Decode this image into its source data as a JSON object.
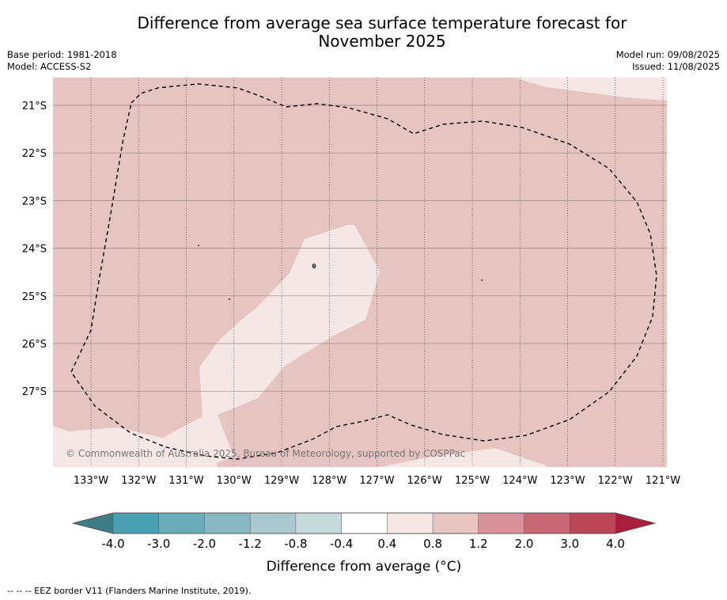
{
  "title_line1": "Difference from average sea surface temperature forecast for",
  "title_line2": "November 2025",
  "base_period": "Base period: 1981-2018",
  "model": "Model: ACCESS-S2",
  "model_run": "Model run: 09/08/2025",
  "issued": "Issued: 11/08/2025",
  "copyright": "© Commonwealth of Australia 2025, Bureau of Meteorology, supported by COSPPac",
  "footnote": "-- -- -- EEZ border V11 (Flanders Marine Institute, 2019).",
  "map": {
    "lat_labels": [
      "21°S",
      "22°S",
      "23°S",
      "24°S",
      "25°S",
      "26°S",
      "27°S"
    ],
    "lon_labels": [
      "133°W",
      "132°W",
      "131°W",
      "130°W",
      "129°W",
      "128°W",
      "127°W",
      "126°W",
      "125°W",
      "124°W",
      "123°W",
      "122°W",
      "121°W"
    ],
    "colors": {
      "band_0_8_1_2": "#e6c4c1",
      "band_0_4_0_8": "#f4e7e6",
      "eez_border": "#000000"
    }
  },
  "colorbar": {
    "title": "Difference from average (°C)",
    "ticks": [
      "-4.0",
      "-3.0",
      "-2.0",
      "-1.2",
      "-0.8",
      "-0.4",
      "0.4",
      "0.8",
      "1.2",
      "2.0",
      "3.0",
      "4.0"
    ],
    "colors": [
      "#3e7c87",
      "#49a0b1",
      "#6cadbc",
      "#8ab9c4",
      "#a9c9ce",
      "#c9dadd",
      "#ffffff",
      "#f4e7e6",
      "#e6c4c1",
      "#d8919a",
      "#c96875",
      "#be4659",
      "#aa1e3c"
    ]
  }
}
